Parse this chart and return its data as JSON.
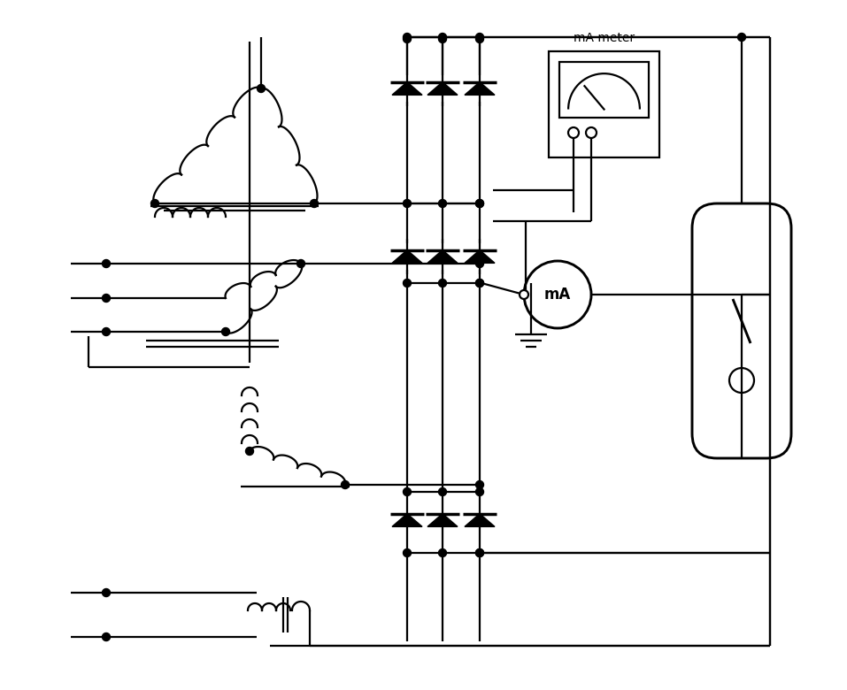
{
  "bg_color": "#ffffff",
  "line_color": "#000000",
  "lw": 1.6,
  "fig_width": 9.57,
  "fig_height": 7.8,
  "mA_meter_label": "mA meter",
  "mA_label": "mA"
}
